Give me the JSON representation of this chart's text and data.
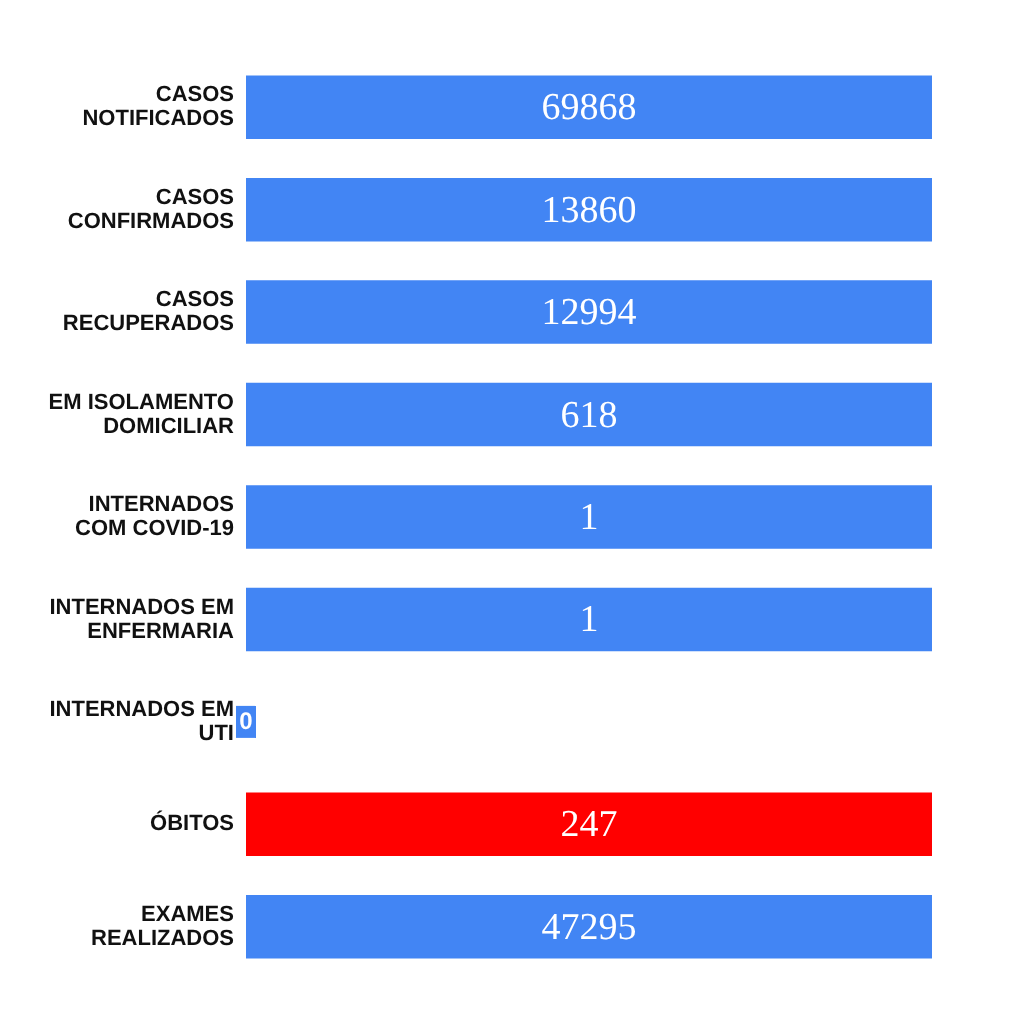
{
  "chart_data": {
    "type": "other",
    "categories": [
      "CASOS\nNOTIFICADOS",
      "CASOS\nCONFIRMADOS",
      "CASOS\nRECUPERADOS",
      "EM ISOLAMENTO\nDOMICILIAR",
      "INTERNADOS\nCOM COVID-19",
      "INTERNADOS EM\nENFERMARIA",
      "INTERNADOS EM\nUTI",
      "ÓBITOS",
      "EXAMES\nREALIZADOS"
    ],
    "values": [
      69868,
      13860,
      12994,
      618,
      1,
      1,
      0,
      247,
      47295
    ],
    "colors": [
      "#4285f4",
      "#4285f4",
      "#4285f4",
      "#4285f4",
      "#4285f4",
      "#4285f4",
      "#4285f4",
      "#ff0000",
      "#4285f4"
    ],
    "data_labels": true
  }
}
